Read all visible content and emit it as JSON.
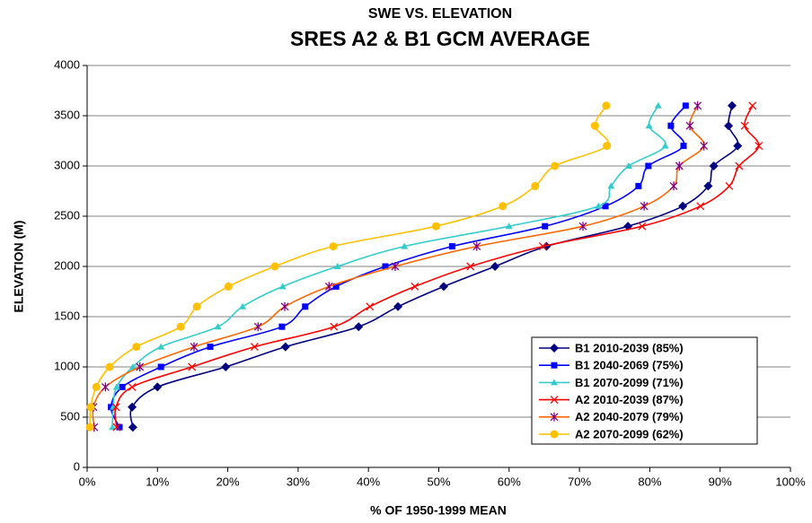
{
  "chart_data": {
    "type": "line",
    "title": "SWE VS. ELEVATION",
    "subtitle": "SRES A2 & B1 GCM AVERAGE",
    "xlabel": "% OF 1950-1999 MEAN",
    "ylabel": "ELEVATION (M)",
    "xlim": [
      0,
      100
    ],
    "xticks": [
      {
        "value": 0,
        "label": "0%"
      },
      {
        "value": 10,
        "label": "10%"
      },
      {
        "value": 20,
        "label": "20%"
      },
      {
        "value": 30,
        "label": "30%"
      },
      {
        "value": 40,
        "label": "40%"
      },
      {
        "value": 50,
        "label": "50%"
      },
      {
        "value": 60,
        "label": "60%"
      },
      {
        "value": 70,
        "label": "70%"
      },
      {
        "value": 80,
        "label": "80%"
      },
      {
        "value": 90,
        "label": "90%"
      },
      {
        "value": 100,
        "label": "100%"
      }
    ],
    "ylim": [
      0,
      4000
    ],
    "yticks": [
      0,
      500,
      1000,
      1500,
      2000,
      2500,
      3000,
      3500,
      4000
    ],
    "grid": true,
    "legend": "lower right",
    "series": [
      {
        "name": "B1 2010-2039 (85%)",
        "color": "#000080",
        "marker_color": "#000080",
        "marker": "diamond",
        "x": [
          6.5,
          6.4,
          10.0,
          19.7,
          28.2,
          38.6,
          44.2,
          50.7,
          58.0,
          65.3,
          76.9,
          84.7,
          88.3,
          89.1,
          92.5,
          91.2,
          91.7
        ],
        "values": [
          400,
          600,
          800,
          1000,
          1200,
          1400,
          1600,
          1800,
          2000,
          2200,
          2400,
          2600,
          2800,
          3000,
          3200,
          3400,
          3600
        ]
      },
      {
        "name": "B1 2040-2069 (75%)",
        "color": "#0000FF",
        "marker_color": "#0000FF",
        "marker": "square",
        "x": [
          4.6,
          3.4,
          5.0,
          10.5,
          17.5,
          27.7,
          31.0,
          35.4,
          42.4,
          51.9,
          65.1,
          73.7,
          78.4,
          79.8,
          84.8,
          83.0,
          85.1
        ],
        "values": [
          400,
          600,
          800,
          1000,
          1200,
          1400,
          1600,
          1800,
          2000,
          2200,
          2400,
          2600,
          2800,
          3000,
          3200,
          3400,
          3600
        ]
      },
      {
        "name": "B1 2070-2099 (71%)",
        "color": "#33CCCC",
        "marker_color": "#33CCCC",
        "marker": "triangle",
        "x": [
          3.6,
          3.7,
          4.2,
          6.5,
          10.5,
          18.6,
          22.1,
          27.8,
          35.6,
          45.1,
          60.0,
          72.7,
          74.5,
          77.0,
          82.2,
          79.9,
          81.2
        ],
        "values": [
          400,
          600,
          800,
          1000,
          1200,
          1400,
          1600,
          1800,
          2000,
          2200,
          2400,
          2600,
          2800,
          3000,
          3200,
          3400,
          3600
        ]
      },
      {
        "name": "A2 2010-2039 (87%)",
        "color": "#FF0000",
        "marker_color": "#FF0000",
        "marker": "x",
        "x": [
          4.2,
          4.1,
          6.4,
          14.9,
          23.8,
          35.1,
          40.2,
          46.6,
          54.5,
          64.8,
          78.9,
          87.2,
          91.3,
          92.7,
          95.5,
          93.5,
          94.6
        ],
        "values": [
          400,
          600,
          800,
          1000,
          1200,
          1400,
          1600,
          1800,
          2000,
          2200,
          2400,
          2600,
          2800,
          3000,
          3200,
          3400,
          3600
        ]
      },
      {
        "name": "A2 2040-2079 (79%)",
        "color": "#FF6600",
        "marker_color": "#800080",
        "marker": "asterisk",
        "x": [
          1.0,
          0.9,
          2.6,
          7.5,
          15.2,
          24.3,
          28.1,
          34.4,
          43.8,
          55.4,
          70.5,
          79.2,
          83.4,
          84.2,
          87.7,
          85.7,
          86.8
        ],
        "values": [
          400,
          600,
          800,
          1000,
          1200,
          1400,
          1600,
          1800,
          2000,
          2200,
          2400,
          2600,
          2800,
          3000,
          3200,
          3400,
          3600
        ]
      },
      {
        "name": "A2 2070-2099 (62%)",
        "color": "#FFC000",
        "marker_color": "#FFC000",
        "marker": "circle",
        "x": [
          0.4,
          0.5,
          1.3,
          3.2,
          7.0,
          13.3,
          15.6,
          20.1,
          26.7,
          35.0,
          49.6,
          59.1,
          63.7,
          66.5,
          73.9,
          72.2,
          73.8
        ],
        "values": [
          400,
          600,
          800,
          1000,
          1200,
          1400,
          1600,
          1800,
          2000,
          2200,
          2400,
          2600,
          2800,
          3000,
          3200,
          3400,
          3600
        ]
      }
    ]
  }
}
